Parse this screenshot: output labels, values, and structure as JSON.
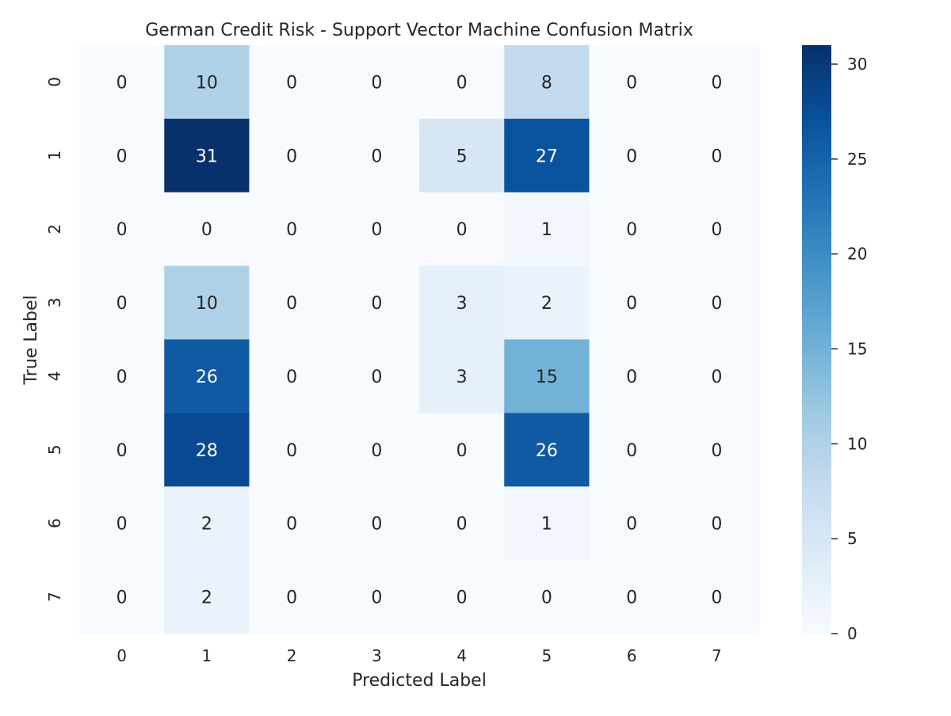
{
  "chart_data": {
    "type": "heatmap",
    "title": "German Credit Risk - Support Vector Machine Confusion Matrix",
    "xlabel": "Predicted Label",
    "ylabel": "True Label",
    "x_categories": [
      "0",
      "1",
      "2",
      "3",
      "4",
      "5",
      "6",
      "7"
    ],
    "y_categories": [
      "0",
      "1",
      "2",
      "3",
      "4",
      "5",
      "6",
      "7"
    ],
    "values": [
      [
        0,
        10,
        0,
        0,
        0,
        8,
        0,
        0
      ],
      [
        0,
        31,
        0,
        0,
        5,
        27,
        0,
        0
      ],
      [
        0,
        0,
        0,
        0,
        0,
        1,
        0,
        0
      ],
      [
        0,
        10,
        0,
        0,
        3,
        2,
        0,
        0
      ],
      [
        0,
        26,
        0,
        0,
        3,
        15,
        0,
        0
      ],
      [
        0,
        28,
        0,
        0,
        0,
        26,
        0,
        0
      ],
      [
        0,
        2,
        0,
        0,
        0,
        1,
        0,
        0
      ],
      [
        0,
        2,
        0,
        0,
        0,
        0,
        0,
        0
      ]
    ],
    "colorbar": {
      "min": 0,
      "max": 31,
      "ticks": [
        0,
        5,
        10,
        15,
        20,
        25,
        30
      ],
      "colormap": "Blues"
    },
    "grid": false,
    "legend": "colorbar-right"
  }
}
